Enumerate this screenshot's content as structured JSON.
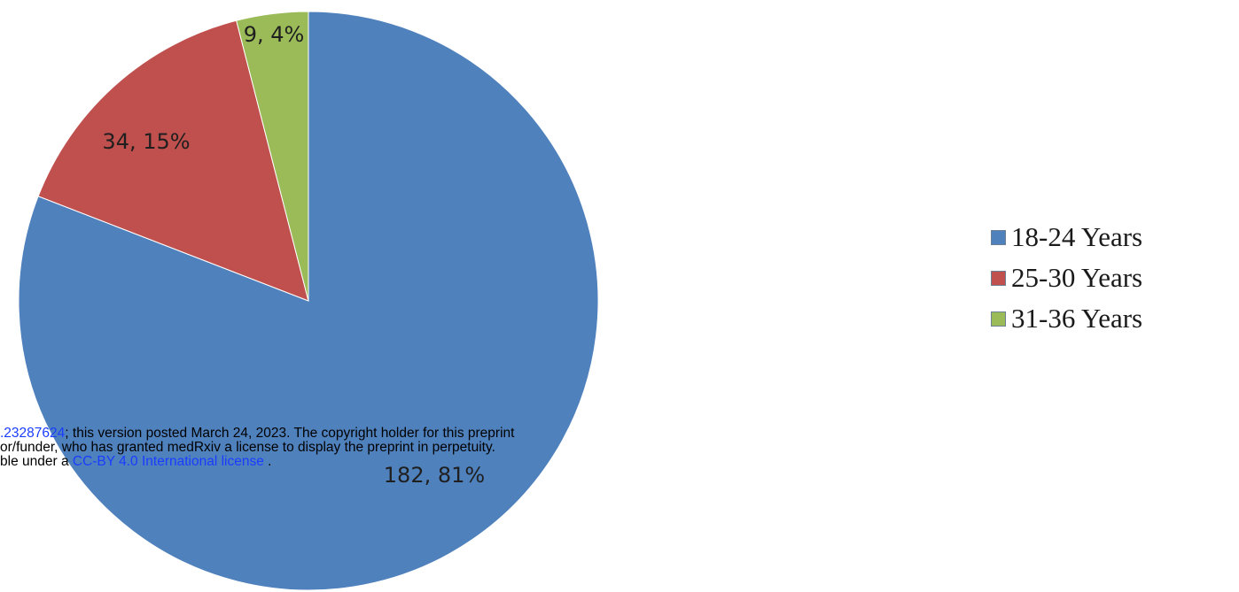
{
  "chart_data": {
    "type": "pie",
    "slices": [
      {
        "label": "18-24 Years",
        "value": 182,
        "percent": 81,
        "display": "182, 81%",
        "color": "#4f81bd"
      },
      {
        "label": "25-30 Years",
        "value": 34,
        "percent": 15,
        "display": "34, 15%",
        "color": "#c0504d"
      },
      {
        "label": "31-36 Years",
        "value": 9,
        "percent": 4,
        "display": "9, 4%",
        "color": "#9bbb59"
      }
    ],
    "legend_position": "right"
  },
  "overlay": {
    "line1_link": ".23287624",
    "line1_text": "; this version posted March 24, 2023. The copyright holder for this preprint",
    "line2_text": "or/funder, who has granted medRxiv a license to display the preprint in perpetuity.",
    "line3_pre": "ble under a ",
    "line3_link": "CC-BY 4.0 International license",
    "line3_post": " ."
  }
}
